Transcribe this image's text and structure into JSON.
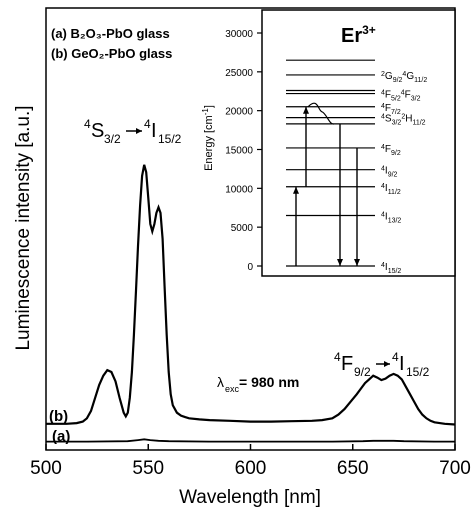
{
  "chart_data": [
    {
      "type": "line",
      "xlabel": "Wavelength [nm]",
      "ylabel": "Luminescence intensity [a.u.]",
      "xlim": [
        500,
        700
      ],
      "xticks": [
        "500",
        "550",
        "600",
        "650",
        "700"
      ],
      "legend": [
        "(a) B₂O₃-PbO glass",
        "(b) GeO₂-PbO glass"
      ],
      "legend_position": "top-left",
      "grid": false,
      "y_tick_labels_shown": false,
      "series": [
        {
          "name": "(b)",
          "label": "(b)",
          "x": [
            500,
            510,
            515,
            518,
            520,
            522,
            524,
            526,
            528,
            530,
            532,
            534,
            536,
            538,
            539,
            540,
            541,
            542,
            543,
            544,
            545,
            546,
            547,
            548,
            549,
            550,
            551,
            552,
            553,
            554,
            555,
            556,
            557,
            558,
            559,
            560,
            561,
            562,
            564,
            566,
            568,
            570,
            575,
            580,
            590,
            600,
            610,
            620,
            630,
            635,
            640,
            643,
            646,
            649,
            652,
            654,
            656,
            658,
            660,
            662,
            664,
            666,
            668,
            670,
            672,
            674,
            676,
            678,
            680,
            682,
            684,
            686,
            688,
            690,
            695,
            700
          ],
          "y": [
            0.06,
            0.06,
            0.062,
            0.066,
            0.075,
            0.095,
            0.13,
            0.165,
            0.19,
            0.205,
            0.2,
            0.175,
            0.13,
            0.09,
            0.08,
            0.09,
            0.13,
            0.2,
            0.3,
            0.42,
            0.54,
            0.65,
            0.73,
            0.76,
            0.74,
            0.67,
            0.6,
            0.58,
            0.6,
            0.63,
            0.645,
            0.63,
            0.56,
            0.43,
            0.3,
            0.2,
            0.14,
            0.11,
            0.09,
            0.082,
            0.078,
            0.075,
            0.072,
            0.07,
            0.068,
            0.066,
            0.066,
            0.067,
            0.068,
            0.07,
            0.075,
            0.085,
            0.1,
            0.12,
            0.14,
            0.155,
            0.17,
            0.18,
            0.19,
            0.185,
            0.178,
            0.182,
            0.19,
            0.195,
            0.19,
            0.18,
            0.16,
            0.14,
            0.12,
            0.1,
            0.085,
            0.075,
            0.068,
            0.064,
            0.06,
            0.058
          ]
        },
        {
          "name": "(a)",
          "label": "(a)",
          "x": [
            500,
            520,
            540,
            545,
            548,
            551,
            555,
            560,
            580,
            600,
            640,
            655,
            660,
            665,
            670,
            675,
            690,
            700
          ],
          "y": [
            0.012,
            0.012,
            0.013,
            0.016,
            0.018,
            0.016,
            0.014,
            0.013,
            0.012,
            0.012,
            0.012,
            0.013,
            0.014,
            0.014,
            0.014,
            0.013,
            0.012,
            0.012
          ]
        }
      ],
      "annotations": [
        {
          "kind": "transition",
          "parts": [
            "4",
            "S",
            "3/2",
            "4",
            "I",
            "15/2"
          ]
        },
        {
          "kind": "transition",
          "parts": [
            "4",
            "F",
            "9/2",
            "4",
            "I",
            "15/2"
          ]
        },
        {
          "kind": "excitation",
          "symbol": "λ",
          "subscript": "exc",
          "text": " = 980 nm"
        }
      ]
    },
    {
      "type": "diagram",
      "title": "Er",
      "title_superscript": "3+",
      "ylabel": "Energy [cm",
      "ylabel_sup": "-1",
      "ylabel_end": "]",
      "ylim": [
        0,
        30000
      ],
      "yticks": [
        "0",
        "5000",
        "10000",
        "15000",
        "20000",
        "25000",
        "30000"
      ],
      "levels": [
        {
          "energy": 0,
          "label_pre": "4",
          "label_main": "I",
          "label_sub": "15/2"
        },
        {
          "energy": 6500,
          "label_pre": "4",
          "label_main": "I",
          "label_sub": "13/2"
        },
        {
          "energy": 10200,
          "label_pre": "4",
          "label_main": "I",
          "label_sub": "11/2"
        },
        {
          "energy": 12400,
          "label_pre": "4",
          "label_main": "I",
          "label_sub": "9/2"
        },
        {
          "energy": 15200,
          "label_pre": "4",
          "label_main": "F",
          "label_sub": "9/2"
        },
        {
          "energy": 18300,
          "label_pre": "",
          "label_main": "",
          "label_sub": ""
        },
        {
          "energy": 19100,
          "label_pre": "4",
          "label_main": "S",
          "label_sub": "3/2",
          "label_pre2": "2",
          "label_main2": "H",
          "label_sub2": "11/2"
        },
        {
          "energy": 20500,
          "label_pre": "4",
          "label_main": "F",
          "label_sub": "7/2"
        },
        {
          "energy": 22200,
          "label_pre": "4",
          "label_main": "F",
          "label_sub": "5/2",
          "label_pre2": "4",
          "label_main2": "F",
          "label_sub2": "3/2"
        },
        {
          "energy": 22600,
          "label_pre": "",
          "label_main": "",
          "label_sub": ""
        },
        {
          "energy": 24600,
          "label_pre": "2",
          "label_main": "G",
          "label_sub": "9/2",
          "label_pre2": "4",
          "label_main2": "G",
          "label_sub2": "11/2"
        },
        {
          "energy": 26500,
          "label_pre": "",
          "label_main": "",
          "label_sub": ""
        }
      ],
      "transitions": [
        {
          "type": "up",
          "from": 0,
          "to": 10200
        },
        {
          "type": "up",
          "from": 10200,
          "to": 20500
        },
        {
          "type": "nonradiative",
          "from": 20500,
          "to": 18300
        },
        {
          "type": "down",
          "from": 18300,
          "to": 0
        },
        {
          "type": "down",
          "from": 15200,
          "to": 0
        }
      ]
    }
  ]
}
